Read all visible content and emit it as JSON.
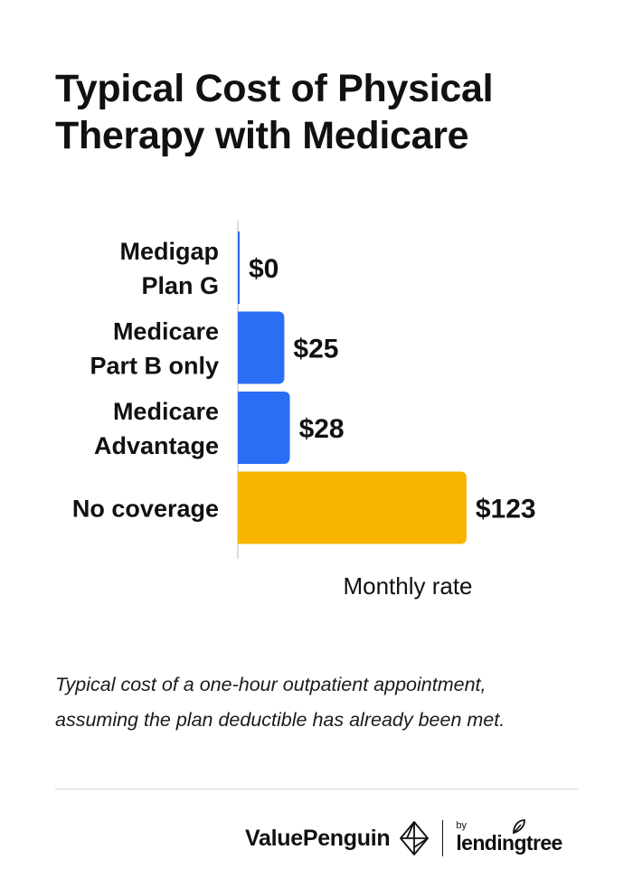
{
  "title": "Typical Cost of Physical Therapy with Medicare",
  "footnote": {
    "line1": "Typical cost of a one-hour outpatient appointment,",
    "line2": "assuming the plan deductible has already been met."
  },
  "footer": {
    "brand": "ValuePenguin",
    "by": "by",
    "partner": "lendingtree"
  },
  "chart_data": {
    "type": "bar",
    "orientation": "horizontal",
    "title": "Typical Cost of Physical Therapy with Medicare",
    "xlabel": "Monthly rate",
    "ylabel": "",
    "categories": [
      [
        "Medigap",
        "Plan G"
      ],
      [
        "Medicare",
        "Part B only"
      ],
      [
        "Medicare",
        "Advantage"
      ],
      [
        "No coverage"
      ]
    ],
    "values": [
      0,
      25,
      28,
      123
    ],
    "value_labels": [
      "$0",
      "$25",
      "$28",
      "$123"
    ],
    "colors": [
      "#2a6ef5",
      "#2a6ef5",
      "#2a6ef5",
      "#f7b500"
    ],
    "xlim": [
      0,
      125
    ],
    "grid": false,
    "legend": "none"
  }
}
